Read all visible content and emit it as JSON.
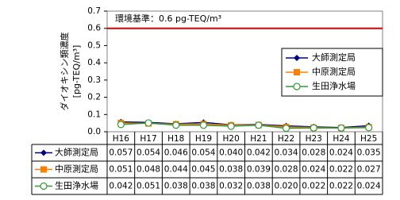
{
  "chart_data": {
    "type": "line",
    "annotation": "環境基準：0.6 pg-TEQ/m³",
    "reference_line": {
      "value": 0.6,
      "color": "#e00000"
    },
    "y_label": [
      "ダイオキシン類濃度",
      "[pg-TEQ/m³]"
    ],
    "categories": [
      "H16",
      "H17",
      "H18",
      "H19",
      "H20",
      "H21",
      "H22",
      "H23",
      "H24",
      "H25"
    ],
    "series": [
      {
        "name": "大師測定局",
        "color": "#000080",
        "marker": "diamond",
        "values": [
          0.057,
          0.054,
          0.046,
          0.054,
          0.04,
          0.042,
          0.034,
          0.028,
          0.024,
          0.035
        ],
        "value_labels": [
          "0.057",
          "0.054",
          "0.046",
          "0.054",
          "0.040",
          "0.042",
          "0.034",
          "0.028",
          "0.024",
          "0.035"
        ]
      },
      {
        "name": "中原測定局",
        "color": "#ff8000",
        "marker": "square",
        "values": [
          0.051,
          0.048,
          0.044,
          0.045,
          0.038,
          0.039,
          0.028,
          0.024,
          0.022,
          0.027
        ],
        "value_labels": [
          "0.051",
          "0.048",
          "0.044",
          "0.045",
          "0.038",
          "0.039",
          "0.028",
          "0.024",
          "0.022",
          "0.027"
        ]
      },
      {
        "name": "生田浄水場",
        "color": "#339933",
        "marker": "circle",
        "values": [
          0.042,
          0.051,
          0.038,
          0.038,
          0.032,
          0.038,
          0.02,
          0.022,
          0.022,
          0.024
        ],
        "value_labels": [
          "0.042",
          "0.051",
          "0.038",
          "0.038",
          "0.032",
          "0.038",
          "0.020",
          "0.022",
          "0.022",
          "0.024"
        ]
      }
    ],
    "ylim": [
      0,
      0.7
    ],
    "yticks": [
      {
        "value": 0,
        "label": "0.0"
      },
      0.1,
      0.2,
      0.3,
      0.4,
      0.5,
      0.6,
      0.7
    ],
    "grid": false,
    "legend": "right"
  }
}
